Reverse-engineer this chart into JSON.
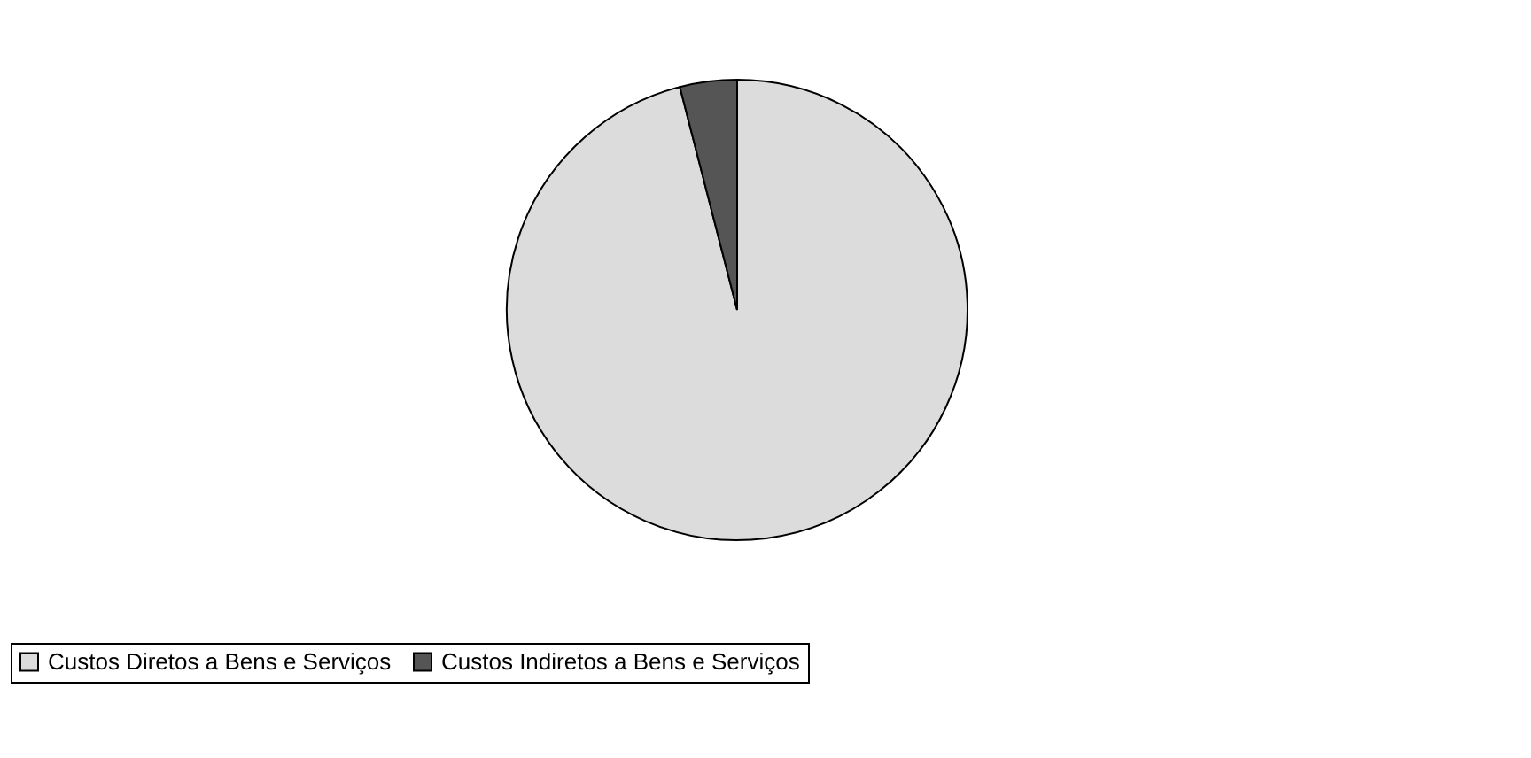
{
  "chart_data": {
    "type": "pie",
    "categories": [
      "Custos Diretos a Bens e Serviços",
      "Custos Indiretos a Bens e Serviços"
    ],
    "values": [
      96,
      4
    ],
    "colors": [
      "#dcdcdc",
      "#555555"
    ],
    "legend": "bottom"
  }
}
